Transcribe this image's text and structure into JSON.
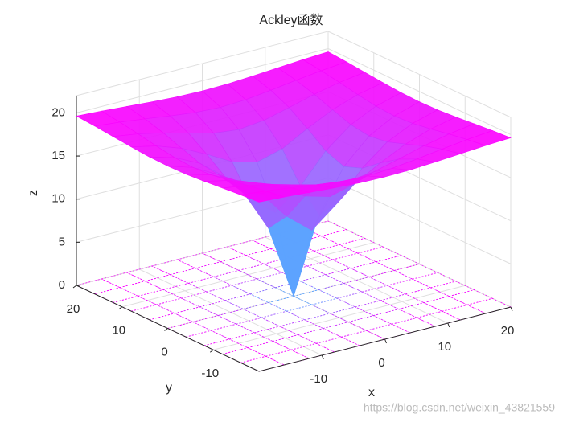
{
  "chart_data": {
    "type": "surface",
    "title": "Ackley函数",
    "x_label": "x",
    "y_label": "y",
    "z_label": "z",
    "x": [
      -20,
      -16,
      -12,
      -8,
      -4,
      0,
      4,
      8,
      12,
      16,
      20
    ],
    "y": [
      -20,
      -16,
      -12,
      -8,
      -4,
      0,
      4,
      8,
      12,
      16,
      20
    ],
    "z": [
      [
        19.63,
        19.47,
        19.26,
        19.05,
        18.88,
        18.82,
        18.88,
        19.05,
        19.26,
        19.47,
        19.63
      ],
      [
        19.47,
        19.18,
        18.82,
        18.41,
        18.06,
        17.92,
        18.06,
        18.41,
        18.82,
        19.18,
        19.47
      ],
      [
        19.26,
        18.82,
        18.19,
        17.4,
        16.66,
        16.34,
        16.66,
        17.4,
        18.19,
        18.82,
        19.26
      ],
      [
        19.05,
        18.41,
        17.4,
        15.96,
        14.35,
        13.55,
        14.35,
        15.96,
        17.4,
        18.41,
        19.05
      ],
      [
        18.88,
        18.06,
        16.66,
        14.35,
        11.01,
        8.64,
        11.01,
        14.35,
        16.66,
        18.06,
        18.88
      ],
      [
        18.82,
        17.92,
        16.34,
        13.55,
        8.64,
        0,
        8.64,
        13.55,
        16.34,
        17.92,
        18.82
      ],
      [
        18.88,
        18.06,
        16.66,
        14.35,
        11.01,
        8.64,
        11.01,
        14.35,
        16.66,
        18.06,
        18.88
      ],
      [
        19.05,
        18.41,
        17.4,
        15.96,
        14.35,
        13.55,
        14.35,
        15.96,
        17.4,
        18.41,
        19.05
      ],
      [
        19.26,
        18.82,
        18.19,
        17.4,
        16.66,
        16.34,
        16.66,
        17.4,
        18.19,
        18.82,
        19.26
      ],
      [
        19.47,
        19.18,
        18.82,
        18.41,
        18.06,
        17.92,
        18.06,
        18.41,
        18.82,
        19.18,
        19.47
      ],
      [
        19.63,
        19.47,
        19.26,
        19.05,
        18.88,
        18.82,
        18.88,
        19.05,
        19.26,
        19.47,
        19.63
      ]
    ],
    "colormap": [
      "#00ffff",
      "#ff00ff"
    ],
    "xlim": [
      -20,
      20
    ],
    "ylim": [
      -20,
      20
    ],
    "zlim": [
      0,
      22
    ],
    "xticks": [
      -10,
      0,
      10,
      20
    ],
    "yticks": [
      -10,
      0,
      10,
      20
    ],
    "zticks": [
      0,
      5,
      10,
      15,
      20
    ],
    "grid": true,
    "contour": true
  },
  "watermark": "https://blog.csdn.net/weixin_43821559"
}
